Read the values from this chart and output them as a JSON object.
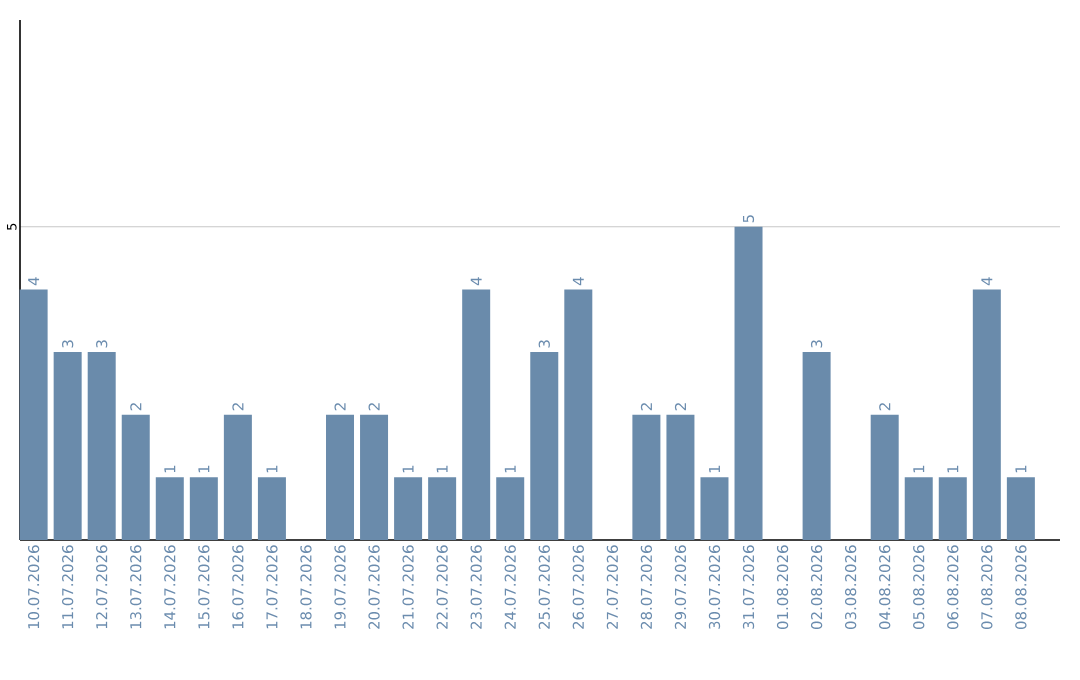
{
  "chart_data": {
    "type": "bar",
    "categories": [
      "10.07.2026",
      "11.07.2026",
      "12.07.2026",
      "13.07.2026",
      "14.07.2026",
      "15.07.2026",
      "16.07.2026",
      "17.07.2026",
      "18.07.2026",
      "19.07.2026",
      "20.07.2026",
      "21.07.2026",
      "22.07.2026",
      "23.07.2026",
      "24.07.2026",
      "25.07.2026",
      "26.07.2026",
      "27.07.2026",
      "28.07.2026",
      "29.07.2026",
      "30.07.2026",
      "31.07.2026",
      "01.08.2026",
      "02.08.2026",
      "03.08.2026",
      "04.08.2026",
      "05.08.2026",
      "06.08.2026",
      "07.08.2026",
      "08.08.2026"
    ],
    "values": [
      4,
      3,
      3,
      2,
      1,
      1,
      2,
      1,
      0,
      2,
      2,
      1,
      1,
      4,
      1,
      3,
      4,
      0,
      2,
      2,
      1,
      5,
      0,
      3,
      0,
      2,
      1,
      1,
      4,
      1
    ],
    "value_labels": [
      "4",
      "3",
      "3",
      "2",
      "1",
      "1",
      "2",
      "1",
      null,
      "2",
      "2",
      "1",
      "1",
      "4",
      "1",
      "3",
      "4",
      null,
      "2",
      "2",
      "1",
      "5",
      null,
      "3",
      null,
      "2",
      "1",
      "1",
      "4",
      "1"
    ],
    "color": "#6a8bab",
    "ylim": [
      0,
      8.3
    ],
    "yticks": [
      5
    ],
    "grid": "y"
  }
}
